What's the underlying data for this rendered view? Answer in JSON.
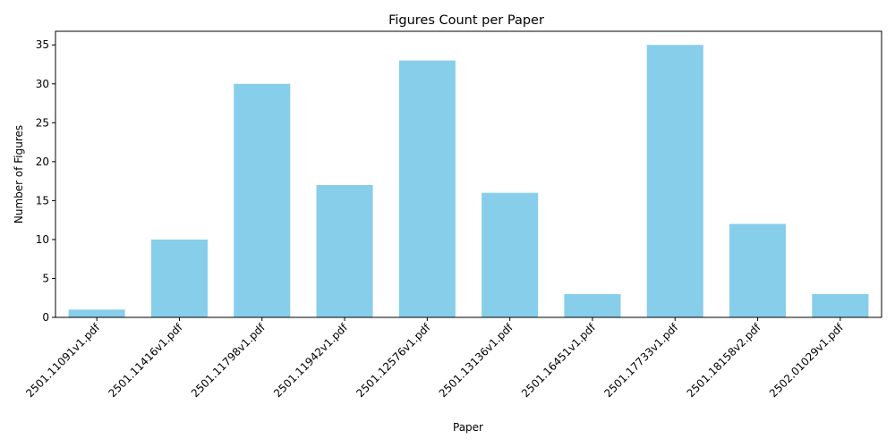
{
  "chart_data": {
    "type": "bar",
    "title": "Figures Count per Paper",
    "xlabel": "Paper",
    "ylabel": "Number of Figures",
    "categories": [
      "2501.11091v1.pdf",
      "2501.11416v1.pdf",
      "2501.11798v1.pdf",
      "2501.11942v1.pdf",
      "2501.12576v1.pdf",
      "2501.13136v1.pdf",
      "2501.16451v1.pdf",
      "2501.17733v1.pdf",
      "2501.18158v2.pdf",
      "2502.01029v1.pdf"
    ],
    "values": [
      1,
      10,
      30,
      17,
      33,
      16,
      3,
      35,
      12,
      3
    ],
    "ylim": [
      0,
      36.75
    ],
    "yticks": [
      0,
      5,
      10,
      15,
      20,
      25,
      30,
      35
    ],
    "bar_color": "#87CEEB",
    "grid": false,
    "legend": "none"
  }
}
